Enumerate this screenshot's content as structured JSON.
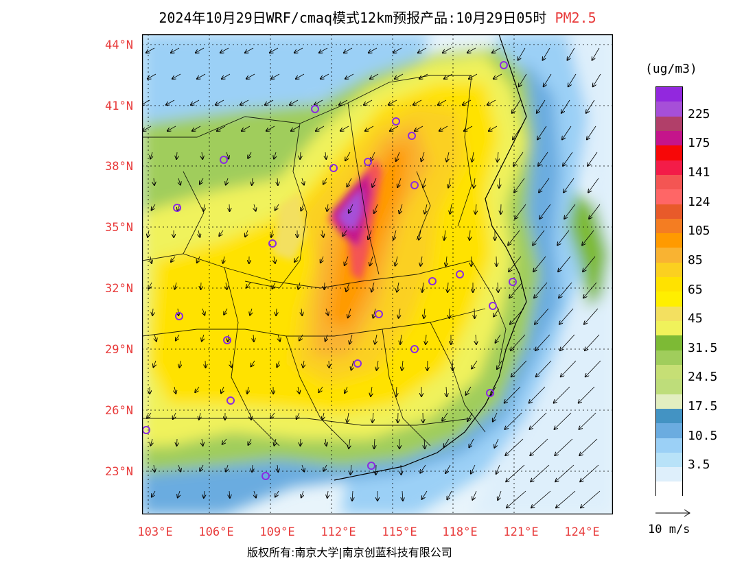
{
  "title": {
    "main": "2024年10月29日WRF/cmaq模式12km预报产品:10月29日05时",
    "pollutant": "PM2.5"
  },
  "map": {
    "lat_labels": [
      "44°N",
      "41°N",
      "38°N",
      "35°N",
      "32°N",
      "29°N",
      "26°N",
      "23°N"
    ],
    "lon_labels": [
      "103°E",
      "106°E",
      "109°E",
      "112°E",
      "115°E",
      "118°E",
      "121°E",
      "124°E"
    ]
  },
  "colorbar": {
    "unit": "(ug/m3)",
    "colors": [
      "#9228de",
      "#a64fd8",
      "#b13f69",
      "#c5148b",
      "#f70707",
      "#f31c48",
      "#f45553",
      "#ff6666",
      "#e85a2a",
      "#f47d22",
      "#ff9a00",
      "#f9b332",
      "#fbd020",
      "#ffe200",
      "#ffef00",
      "#f3e060",
      "#f0f25b",
      "#7dba35",
      "#a0cd5c",
      "#c6df75",
      "#bedd7a",
      "#e2eec0",
      "#4393c3",
      "#6bace0",
      "#9bd0f6",
      "#b8e2f8",
      "#deeffb",
      "#ffffff"
    ],
    "labels": [
      {
        "text": "225",
        "row": 1
      },
      {
        "text": "175",
        "row": 3
      },
      {
        "text": "141",
        "row": 5
      },
      {
        "text": "124",
        "row": 7
      },
      {
        "text": "105",
        "row": 9
      },
      {
        "text": "85",
        "row": 11
      },
      {
        "text": "65",
        "row": 13
      },
      {
        "text": "45",
        "row": 15
      },
      {
        "text": "31.5",
        "row": 17
      },
      {
        "text": "24.5",
        "row": 19
      },
      {
        "text": "17.5",
        "row": 21
      },
      {
        "text": "10.5",
        "row": 23
      },
      {
        "text": "3.5",
        "row": 25
      }
    ]
  },
  "wind_legend": {
    "label": "10 m/s"
  },
  "copyright": {
    "text": "版权所有:南京大学|南京创蓝科技有限公司"
  }
}
